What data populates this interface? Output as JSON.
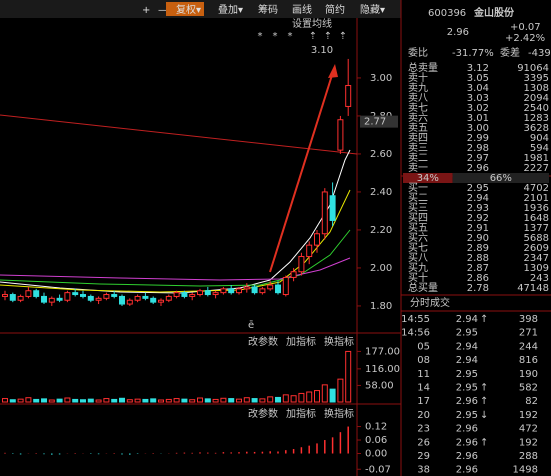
{
  "toolbar": {
    "buttons": [
      "+",
      "—",
      "复权▾",
      "叠加▾",
      "筹码",
      "画线",
      "简约",
      "隐藏▾"
    ]
  },
  "kline": {
    "ma_setting": "设置均线",
    "peak_label": "3.10",
    "markers": [
      "*",
      "*",
      "*",
      "⇡",
      "⇡",
      "⇡"
    ],
    "ylim": [
      1.726,
      3.326
    ],
    "yticks": [
      {
        "value": 3,
        "label": "3.00"
      },
      {
        "value": 2.8,
        "label": "2.80"
      },
      {
        "value": 2.6,
        "label": "2.60"
      },
      {
        "value": 2.4,
        "label": "2.40"
      },
      {
        "value": 2.2,
        "label": "2.20"
      },
      {
        "value": 2,
        "label": "2.00"
      },
      {
        "value": 1.8,
        "label": "1.80"
      }
    ],
    "current": 2.77,
    "candles": [
      [
        1.85,
        1.88,
        1.83,
        1.86
      ],
      [
        1.86,
        1.87,
        1.82,
        1.83
      ],
      [
        1.83,
        1.86,
        1.82,
        1.85
      ],
      [
        1.85,
        1.9,
        1.84,
        1.88
      ],
      [
        1.88,
        1.89,
        1.84,
        1.85
      ],
      [
        1.85,
        1.87,
        1.81,
        1.82
      ],
      [
        1.82,
        1.85,
        1.8,
        1.84
      ],
      [
        1.84,
        1.86,
        1.82,
        1.83
      ],
      [
        1.83,
        1.88,
        1.82,
        1.87
      ],
      [
        1.87,
        1.89,
        1.85,
        1.86
      ],
      [
        1.86,
        1.88,
        1.84,
        1.85
      ],
      [
        1.85,
        1.86,
        1.82,
        1.83
      ],
      [
        1.83,
        1.85,
        1.81,
        1.84
      ],
      [
        1.84,
        1.87,
        1.83,
        1.86
      ],
      [
        1.86,
        1.88,
        1.84,
        1.85
      ],
      [
        1.85,
        1.86,
        1.8,
        1.81
      ],
      [
        1.81,
        1.84,
        1.8,
        1.83
      ],
      [
        1.83,
        1.86,
        1.82,
        1.85
      ],
      [
        1.85,
        1.87,
        1.83,
        1.84
      ],
      [
        1.84,
        1.85,
        1.81,
        1.82
      ],
      [
        1.82,
        1.84,
        1.8,
        1.83
      ],
      [
        1.83,
        1.86,
        1.82,
        1.85
      ],
      [
        1.85,
        1.88,
        1.84,
        1.87
      ],
      [
        1.87,
        1.88,
        1.84,
        1.85
      ],
      [
        1.85,
        1.87,
        1.83,
        1.86
      ],
      [
        1.86,
        1.89,
        1.85,
        1.88
      ],
      [
        1.88,
        1.9,
        1.85,
        1.86
      ],
      [
        1.86,
        1.88,
        1.84,
        1.87
      ],
      [
        1.87,
        1.9,
        1.86,
        1.89
      ],
      [
        1.89,
        1.91,
        1.86,
        1.87
      ],
      [
        1.87,
        1.9,
        1.86,
        1.89
      ],
      [
        1.89,
        1.92,
        1.87,
        1.9
      ],
      [
        1.9,
        1.91,
        1.86,
        1.87
      ],
      [
        1.87,
        1.9,
        1.86,
        1.89
      ],
      [
        1.89,
        1.93,
        1.88,
        1.91
      ],
      [
        1.91,
        1.93,
        1.86,
        1.87
      ],
      [
        1.86,
        1.96,
        1.85,
        1.95
      ],
      [
        1.95,
        2.0,
        1.93,
        1.98
      ],
      [
        1.98,
        2.08,
        1.96,
        2.06
      ],
      [
        2.06,
        2.14,
        2.02,
        2.12
      ],
      [
        2.12,
        2.2,
        2.08,
        2.18
      ],
      [
        2.18,
        2.42,
        2.15,
        2.4
      ],
      [
        2.38,
        2.45,
        2.22,
        2.25
      ],
      [
        2.62,
        2.8,
        2.6,
        2.78
      ],
      [
        2.85,
        3.1,
        2.8,
        2.96
      ]
    ]
  },
  "volume": {
    "toolbar": [
      "改参数",
      "加指标",
      "换指标"
    ],
    "ylim": [
      0,
      196
    ],
    "yticks": [
      {
        "value": 177,
        "label": "177.00"
      },
      {
        "value": 116,
        "label": "116.00"
      },
      {
        "value": 58,
        "label": "58.00"
      }
    ],
    "values": [
      12,
      8,
      10,
      15,
      9,
      11,
      7,
      10,
      14,
      9,
      8,
      10,
      7,
      12,
      9,
      13,
      8,
      10,
      9,
      11,
      7,
      9,
      12,
      10,
      8,
      14,
      11,
      9,
      13,
      12,
      10,
      15,
      12,
      11,
      18,
      16,
      25,
      22,
      30,
      35,
      40,
      60,
      45,
      80,
      177
    ]
  },
  "indicator": {
    "toolbar": [
      "改参数",
      "加指标",
      "换指标"
    ],
    "ylim": [
      -0.1,
      0.158
    ],
    "yticks": [
      {
        "value": 0.12,
        "label": "0.12"
      },
      {
        "value": 0.06,
        "label": "0.06"
      },
      {
        "value": 0,
        "label": "0.00"
      },
      {
        "value": -0.07,
        "label": "-0.07"
      }
    ],
    "values": [
      0.003,
      -0.002,
      -0.004,
      0.001,
      0.002,
      -0.003,
      -0.005,
      -0.004,
      0.001,
      0.002,
      0.001,
      -0.002,
      -0.003,
      0.001,
      0.002,
      -0.004,
      -0.005,
      -0.002,
      0.001,
      0.002,
      -0.001,
      0.001,
      0.003,
      0.004,
      0.003,
      0.005,
      0.004,
      0.003,
      0.006,
      0.005,
      0.006,
      0.008,
      0.007,
      0.008,
      0.01,
      0.009,
      0.015,
      0.02,
      0.028,
      0.035,
      0.045,
      0.06,
      0.072,
      0.095,
      0.12
    ]
  },
  "quote": {
    "code": "600396",
    "name": "金山股份",
    "price": "2.96",
    "change": "+0.07",
    "change_pct": "+2.42%",
    "ratio_label": "委比",
    "ratio": "-31.77%",
    "diff_label": "委差",
    "diff": "-439",
    "sell": [
      [
        "总卖量",
        "3.12",
        "91064"
      ],
      [
        "卖十",
        "3.05",
        "3395"
      ],
      [
        "卖九",
        "3.04",
        "1308"
      ],
      [
        "卖八",
        "3.03",
        "2094"
      ],
      [
        "卖七",
        "3.02",
        "2540"
      ],
      [
        "卖六",
        "3.01",
        "1283"
      ],
      [
        "卖五",
        "3.00",
        "3628"
      ],
      [
        "卖四",
        "2.99",
        "904"
      ],
      [
        "卖三",
        "2.98",
        "594"
      ],
      [
        "卖二",
        "2.97",
        "1981"
      ],
      [
        "卖一",
        "2.96",
        "2227"
      ]
    ],
    "bid_ask_ratio": {
      "values": [
        34,
        66
      ],
      "value_labels": [
        "34%",
        "66%"
      ]
    },
    "buy": [
      [
        "买一",
        "2.95",
        "4702"
      ],
      [
        "买二",
        "2.94",
        "2101"
      ],
      [
        "买三",
        "2.93",
        "1936"
      ],
      [
        "买四",
        "2.92",
        "1648"
      ],
      [
        "买五",
        "2.91",
        "1377"
      ],
      [
        "买六",
        "2.90",
        "5688"
      ],
      [
        "买七",
        "2.89",
        "2609"
      ],
      [
        "买八",
        "2.88",
        "2347"
      ],
      [
        "买九",
        "2.87",
        "1309"
      ],
      [
        "买十",
        "2.86",
        "243"
      ],
      [
        "总买量",
        "2.78",
        "47148"
      ]
    ]
  },
  "trades": {
    "title": "分时成交",
    "rows": [
      {
        "time": "14:55",
        "price": "2.94",
        "arrow": "↑",
        "volume": "398",
        "color": "#ff4040"
      },
      {
        "time": "14:56",
        "price": "2.95",
        "volume": "271",
        "color": "#ff4040"
      },
      {
        "time": "05",
        "price": "2.94",
        "volume": "244",
        "color": "#30d030"
      },
      {
        "time": "08",
        "price": "2.94",
        "volume": "816",
        "color": "#30d030"
      },
      {
        "time": "11",
        "price": "2.95",
        "volume": "190",
        "color": "#30d030"
      },
      {
        "time": "14",
        "price": "2.95",
        "arrow": "↑",
        "volume": "582",
        "color": "#ff4040"
      },
      {
        "time": "17",
        "price": "2.96",
        "arrow": "↑",
        "volume": "82",
        "color": "#ff4040"
      },
      {
        "time": "20",
        "price": "2.95",
        "arrow": "↓",
        "volume": "192",
        "color": "#30d030"
      },
      {
        "time": "23",
        "price": "2.96",
        "volume": "472",
        "color": "#30d030"
      },
      {
        "time": "26",
        "price": "2.96",
        "arrow": "↑",
        "volume": "192",
        "color": "#ff4040"
      },
      {
        "time": "29",
        "price": "2.96",
        "volume": "288",
        "color": "#30d030"
      },
      {
        "time": "38",
        "price": "2.96",
        "volume": "1498",
        "color": "#ff4040"
      }
    ]
  }
}
